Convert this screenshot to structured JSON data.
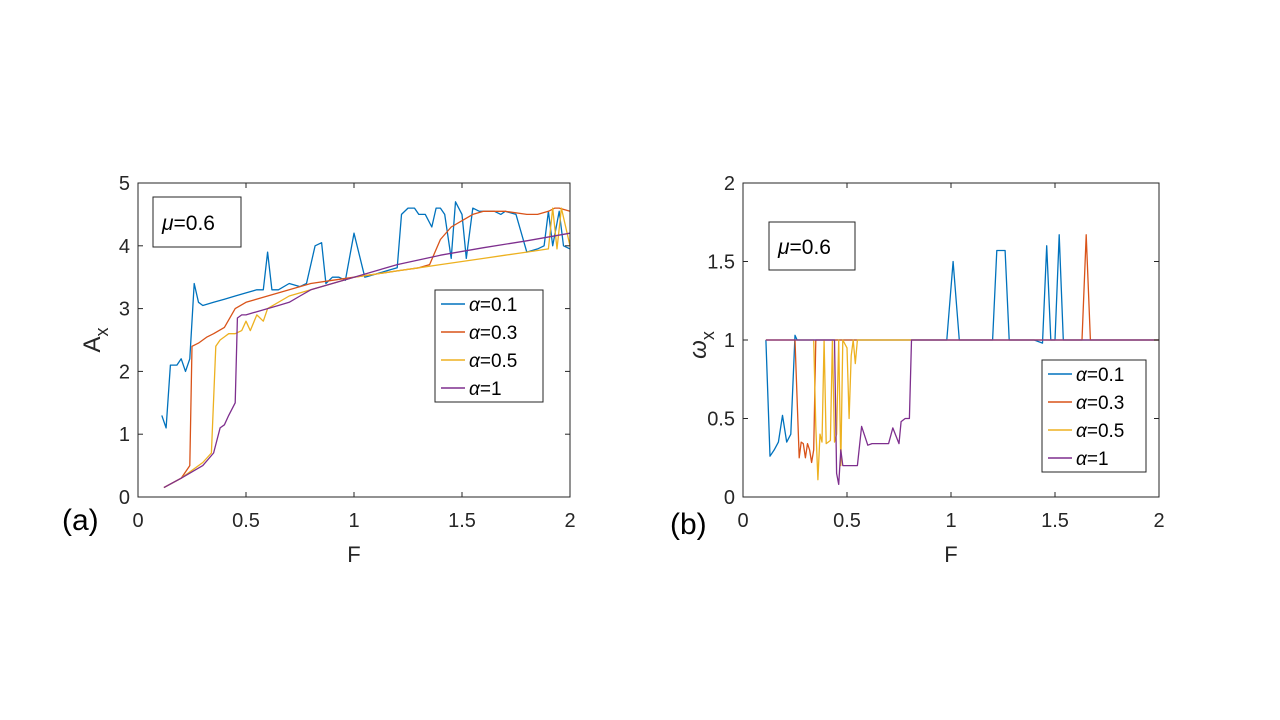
{
  "panel_labels": {
    "a": "(a)",
    "b": "(b)"
  },
  "colors": {
    "s1": "#0072BD",
    "s2": "#D95319",
    "s3": "#EDB120",
    "s4": "#7E2F8E"
  },
  "chart_data": [
    {
      "type": "line",
      "id": "a",
      "xlabel": "F",
      "ylabel_main": "A",
      "ylabel_sub": "x",
      "xlim": [
        0,
        2
      ],
      "ylim": [
        0,
        5
      ],
      "xticks": [
        0,
        0.5,
        1,
        1.5,
        2
      ],
      "yticks": [
        0,
        1,
        2,
        3,
        4,
        5
      ],
      "xticklabels": [
        "0",
        "0.5",
        "1",
        "1.5",
        "2"
      ],
      "yticklabels": [
        "0",
        "1",
        "2",
        "3",
        "4",
        "5"
      ],
      "annotation": {
        "symbol": "μ",
        "text": "=0.6"
      },
      "series": [
        {
          "name": "α=0.1",
          "symbol": "α",
          "suffix": "=0.1",
          "color": "#0072BD",
          "x": [
            0.11,
            0.13,
            0.15,
            0.18,
            0.2,
            0.22,
            0.24,
            0.26,
            0.28,
            0.3,
            0.35,
            0.4,
            0.45,
            0.5,
            0.55,
            0.58,
            0.6,
            0.62,
            0.65,
            0.7,
            0.75,
            0.78,
            0.82,
            0.85,
            0.87,
            0.9,
            0.93,
            0.96,
            1.0,
            1.05,
            1.1,
            1.15,
            1.2,
            1.22,
            1.25,
            1.28,
            1.3,
            1.33,
            1.36,
            1.38,
            1.4,
            1.42,
            1.45,
            1.47,
            1.5,
            1.52,
            1.55,
            1.58,
            1.6,
            1.62,
            1.65,
            1.68,
            1.7,
            1.75,
            1.8,
            1.85,
            1.88,
            1.9,
            1.92,
            1.95,
            1.97,
            2.0
          ],
          "y": [
            1.3,
            1.1,
            2.1,
            2.1,
            2.2,
            2.0,
            2.2,
            3.4,
            3.1,
            3.05,
            3.1,
            3.15,
            3.2,
            3.25,
            3.3,
            3.3,
            3.9,
            3.3,
            3.3,
            3.4,
            3.35,
            3.4,
            4.0,
            4.05,
            3.4,
            3.5,
            3.5,
            3.45,
            4.2,
            3.5,
            3.55,
            3.6,
            3.65,
            4.5,
            4.6,
            4.6,
            4.5,
            4.5,
            4.3,
            4.6,
            4.6,
            4.5,
            3.8,
            4.7,
            4.5,
            3.8,
            4.6,
            4.55,
            4.55,
            4.55,
            4.55,
            4.5,
            4.55,
            4.5,
            3.9,
            3.95,
            4.0,
            4.55,
            4.0,
            4.55,
            4.0,
            3.95
          ]
        },
        {
          "name": "α=0.3",
          "symbol": "α",
          "suffix": "=0.3",
          "color": "#D95319",
          "x": [
            0.12,
            0.2,
            0.24,
            0.25,
            0.28,
            0.3,
            0.32,
            0.35,
            0.4,
            0.45,
            0.5,
            0.6,
            0.7,
            0.8,
            0.9,
            1.0,
            1.1,
            1.2,
            1.3,
            1.35,
            1.4,
            1.45,
            1.5,
            1.55,
            1.6,
            1.65,
            1.7,
            1.8,
            1.85,
            1.9,
            1.93,
            1.95,
            2.0
          ],
          "y": [
            0.15,
            0.3,
            0.5,
            2.4,
            2.45,
            2.5,
            2.55,
            2.6,
            2.7,
            3.0,
            3.1,
            3.2,
            3.3,
            3.4,
            3.45,
            3.5,
            3.55,
            3.6,
            3.65,
            3.7,
            4.1,
            4.3,
            4.4,
            4.5,
            4.55,
            4.55,
            4.55,
            4.5,
            4.5,
            4.55,
            4.6,
            4.6,
            4.55
          ]
        },
        {
          "name": "α=0.5",
          "symbol": "α",
          "suffix": "=0.5",
          "color": "#EDB120",
          "x": [
            0.12,
            0.2,
            0.3,
            0.34,
            0.36,
            0.38,
            0.4,
            0.42,
            0.45,
            0.48,
            0.5,
            0.52,
            0.55,
            0.58,
            0.6,
            0.7,
            0.8,
            0.9,
            1.0,
            1.1,
            1.2,
            1.3,
            1.4,
            1.5,
            1.6,
            1.7,
            1.8,
            1.9,
            1.92,
            1.94,
            1.96,
            2.0
          ],
          "y": [
            0.15,
            0.3,
            0.55,
            0.7,
            2.4,
            2.5,
            2.55,
            2.6,
            2.6,
            2.65,
            2.8,
            2.65,
            2.9,
            2.8,
            3.0,
            3.2,
            3.3,
            3.4,
            3.5,
            3.55,
            3.6,
            3.65,
            3.7,
            3.75,
            3.8,
            3.85,
            3.9,
            3.95,
            4.6,
            3.95,
            4.6,
            4.0
          ]
        },
        {
          "name": "α=1",
          "symbol": "α",
          "suffix": "=1",
          "color": "#7E2F8E",
          "x": [
            0.12,
            0.2,
            0.3,
            0.35,
            0.38,
            0.4,
            0.42,
            0.45,
            0.46,
            0.48,
            0.5,
            0.55,
            0.6,
            0.65,
            0.7,
            0.75,
            0.8,
            0.85,
            0.9,
            1.0,
            1.2,
            1.4,
            1.6,
            1.8,
            2.0
          ],
          "y": [
            0.15,
            0.3,
            0.5,
            0.7,
            1.1,
            1.15,
            1.3,
            1.5,
            2.85,
            2.9,
            2.9,
            2.95,
            3.0,
            3.05,
            3.1,
            3.2,
            3.3,
            3.35,
            3.4,
            3.5,
            3.7,
            3.85,
            3.97,
            4.08,
            4.2
          ]
        }
      ],
      "legend_position": "center-right"
    },
    {
      "type": "line",
      "id": "b",
      "xlabel": "F",
      "ylabel_main": "ω",
      "ylabel_sub": "x",
      "xlim": [
        0,
        2
      ],
      "ylim": [
        0,
        2
      ],
      "xticks": [
        0,
        0.5,
        1,
        1.5,
        2
      ],
      "yticks": [
        0,
        0.5,
        1,
        1.5,
        2
      ],
      "xticklabels": [
        "0",
        "0.5",
        "1",
        "1.5",
        "2"
      ],
      "yticklabels": [
        "0",
        "0.5",
        "1",
        "1.5",
        "2"
      ],
      "annotation": {
        "symbol": "μ",
        "text": "=0.6"
      },
      "series": [
        {
          "name": "α=0.1",
          "symbol": "α",
          "suffix": "=0.1",
          "color": "#0072BD",
          "x": [
            0.11,
            0.13,
            0.15,
            0.17,
            0.19,
            0.21,
            0.23,
            0.25,
            0.26,
            0.3,
            0.5,
            0.8,
            0.98,
            1.01,
            1.04,
            1.2,
            1.22,
            1.26,
            1.28,
            1.4,
            1.44,
            1.46,
            1.48,
            1.5,
            1.52,
            1.54,
            1.56,
            1.6,
            2.0
          ],
          "y": [
            1.0,
            0.26,
            0.3,
            0.35,
            0.52,
            0.35,
            0.4,
            1.03,
            1.0,
            1.0,
            1.0,
            1.0,
            1.0,
            1.5,
            1.0,
            1.0,
            1.57,
            1.57,
            1.0,
            1.0,
            0.98,
            1.6,
            1.0,
            1.0,
            1.67,
            1.0,
            1.0,
            1.0,
            1.0
          ]
        },
        {
          "name": "α=0.3",
          "symbol": "α",
          "suffix": "=0.3",
          "color": "#D95319",
          "x": [
            0.11,
            0.25,
            0.27,
            0.28,
            0.29,
            0.3,
            0.31,
            0.32,
            0.33,
            0.34,
            0.35,
            0.5,
            0.6,
            1.0,
            1.6,
            1.63,
            1.65,
            1.67,
            2.0
          ],
          "y": [
            1.0,
            1.0,
            0.25,
            0.35,
            0.34,
            0.25,
            0.34,
            0.3,
            0.22,
            0.3,
            1.0,
            1.0,
            1.0,
            1.0,
            1.0,
            1.0,
            1.67,
            1.0,
            1.0
          ]
        },
        {
          "name": "α=0.5",
          "symbol": "α",
          "suffix": "=0.5",
          "color": "#EDB120",
          "x": [
            0.11,
            0.34,
            0.35,
            0.36,
            0.37,
            0.38,
            0.39,
            0.4,
            0.42,
            0.43,
            0.44,
            0.45,
            0.46,
            0.47,
            0.48,
            0.5,
            0.51,
            0.52,
            0.53,
            0.54,
            0.55,
            0.6,
            1.0,
            2.0
          ],
          "y": [
            1.0,
            1.0,
            0.45,
            0.11,
            0.4,
            0.35,
            1.0,
            0.34,
            0.36,
            1.0,
            0.35,
            0.4,
            1.0,
            0.2,
            1.0,
            0.95,
            0.5,
            0.9,
            1.0,
            0.85,
            1.0,
            1.0,
            1.0,
            1.0
          ]
        },
        {
          "name": "α=1",
          "symbol": "α",
          "suffix": "=1",
          "color": "#7E2F8E",
          "x": [
            0.11,
            0.44,
            0.45,
            0.46,
            0.47,
            0.48,
            0.5,
            0.55,
            0.57,
            0.6,
            0.62,
            0.65,
            0.7,
            0.72,
            0.75,
            0.76,
            0.78,
            0.8,
            0.81,
            0.85,
            0.9,
            1.0,
            2.0
          ],
          "y": [
            1.0,
            1.0,
            0.15,
            0.08,
            0.3,
            0.2,
            0.2,
            0.2,
            0.45,
            0.33,
            0.34,
            0.34,
            0.34,
            0.44,
            0.34,
            0.48,
            0.5,
            0.5,
            1.0,
            1.0,
            1.0,
            1.0,
            1.0
          ]
        }
      ],
      "legend_position": "bottom-right"
    }
  ]
}
